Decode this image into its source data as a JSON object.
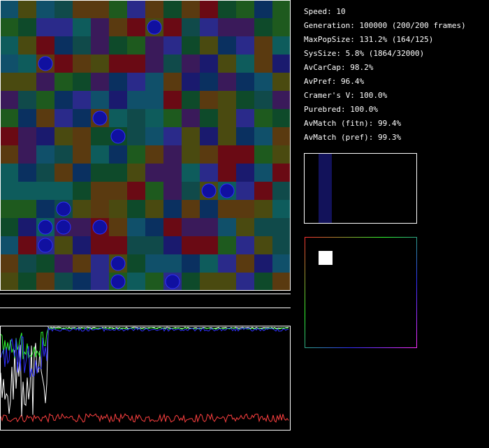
{
  "stats": [
    "Speed: 10",
    "Generation: 100000 (200/200 frames)",
    "MaxPopSize: 131.2% (164/125)",
    "SysSize: 5.8% (1864/32000)",
    "AvCarCap: 98.2%",
    "AvPref: 96.4%",
    "Cramer's V: 100.0%",
    "Purebred: 100.0%",
    "AvMatch (fitn): 99.4%",
    "AvMatch (pref): 99.3%"
  ]
}
